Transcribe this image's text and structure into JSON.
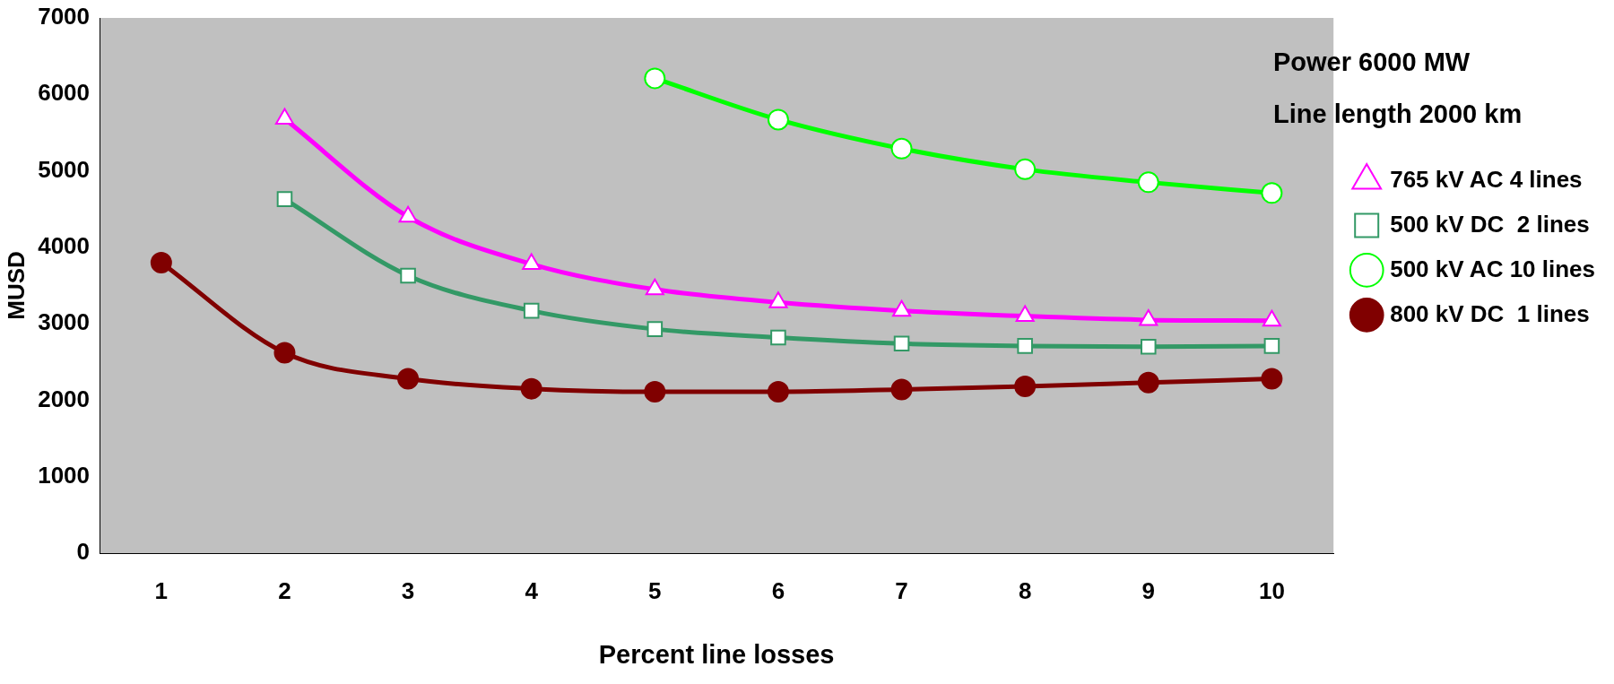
{
  "chart_data": {
    "type": "line",
    "xlabel": "Percent line losses",
    "ylabel": "MUSD",
    "categories": [
      "1",
      "2",
      "3",
      "4",
      "5",
      "6",
      "7",
      "8",
      "9",
      "10"
    ],
    "ylim": [
      0,
      7000
    ],
    "yticks": [
      0,
      1000,
      2000,
      3000,
      4000,
      5000,
      6000,
      7000
    ],
    "grid": false,
    "legend": "top right",
    "annotations": [
      "Power 6000 MW",
      "Line length 2000 km"
    ],
    "series": [
      {
        "name": "765 kV AC 4 lines",
        "color": "#ff00ff",
        "marker": "triangle",
        "values": [
          null,
          5680,
          4400,
          3780,
          3450,
          3280,
          3170,
          3100,
          3050,
          3040
        ]
      },
      {
        "name": "500 kV DC  2 lines",
        "color": "#339966",
        "marker": "square",
        "values": [
          null,
          4630,
          3630,
          3170,
          2930,
          2820,
          2740,
          2710,
          2700,
          2710
        ]
      },
      {
        "name": "500 kV AC 10 lines",
        "color": "#00ff00",
        "marker": "circle",
        "values": [
          null,
          null,
          null,
          null,
          6210,
          5670,
          5290,
          5020,
          4850,
          4710
        ]
      },
      {
        "name": "800 kV DC  1 lines",
        "color": "#800000",
        "marker": "circle",
        "values": [
          3800,
          2620,
          2280,
          2150,
          2110,
          2110,
          2140,
          2180,
          2230,
          2280
        ]
      }
    ]
  }
}
